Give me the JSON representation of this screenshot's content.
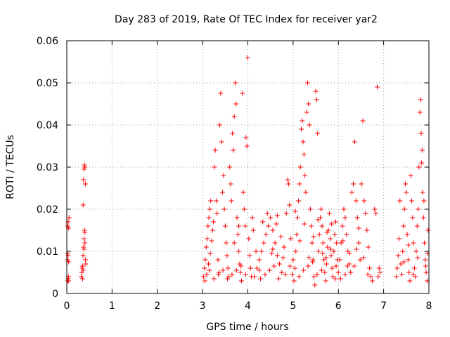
{
  "chart_data": {
    "type": "scatter",
    "title": "Day 283 of 2019, Rate Of TEC Index for receiver yar2",
    "xlabel": "GPS time / hours",
    "ylabel": "ROTI / TECUs",
    "xlim": [
      0,
      8
    ],
    "ylim": [
      0,
      0.06
    ],
    "xticks": [
      "0",
      "1",
      "2",
      "3",
      "4",
      "5",
      "6",
      "7",
      "8"
    ],
    "yticks": [
      "0",
      "0.01",
      "0.02",
      "0.03",
      "0.04",
      "0.05",
      "0.06"
    ],
    "grid": true,
    "marker": "plus",
    "color": "#ff0000",
    "series": [
      {
        "name": "yar2",
        "points": [
          [
            0.02,
            0.003
          ],
          [
            0.03,
            0.0035
          ],
          [
            0.04,
            0.003
          ],
          [
            0.02,
            0.008
          ],
          [
            0.03,
            0.009
          ],
          [
            0.04,
            0.0075
          ],
          [
            0.02,
            0.016
          ],
          [
            0.03,
            0.017
          ],
          [
            0.04,
            0.0155
          ],
          [
            0.05,
            0.018
          ],
          [
            0.02,
            0.0095
          ],
          [
            0.04,
            0.004
          ],
          [
            0.32,
            0.004
          ],
          [
            0.33,
            0.005
          ],
          [
            0.34,
            0.006
          ],
          [
            0.35,
            0.0035
          ],
          [
            0.36,
            0.009
          ],
          [
            0.37,
            0.011
          ],
          [
            0.38,
            0.013
          ],
          [
            0.39,
            0.015
          ],
          [
            0.4,
            0.012
          ],
          [
            0.41,
            0.008
          ],
          [
            0.42,
            0.007
          ],
          [
            0.36,
            0.021
          ],
          [
            0.37,
            0.027
          ],
          [
            0.38,
            0.0295
          ],
          [
            0.39,
            0.0305
          ],
          [
            0.4,
            0.03
          ],
          [
            0.41,
            0.026
          ],
          [
            0.35,
            0.0065
          ],
          [
            0.36,
            0.0055
          ],
          [
            0.38,
            0.0105
          ],
          [
            0.4,
            0.0145
          ],
          [
            3.02,
            0.004
          ],
          [
            3.04,
            0.006
          ],
          [
            3.06,
            0.008
          ],
          [
            3.08,
            0.011
          ],
          [
            3.1,
            0.013
          ],
          [
            3.12,
            0.016
          ],
          [
            3.14,
            0.018
          ],
          [
            3.16,
            0.02
          ],
          [
            3.18,
            0.022
          ],
          [
            3.05,
            0.003
          ],
          [
            3.09,
            0.0045
          ],
          [
            3.13,
            0.007
          ],
          [
            3.17,
            0.0095
          ],
          [
            3.2,
            0.0125
          ],
          [
            3.22,
            0.015
          ],
          [
            3.24,
            0.017
          ],
          [
            3.26,
            0.03
          ],
          [
            3.28,
            0.034
          ],
          [
            3.3,
            0.022
          ],
          [
            3.32,
            0.019
          ],
          [
            3.34,
            0.008
          ],
          [
            3.36,
            0.005
          ],
          [
            3.38,
            0.04
          ],
          [
            3.4,
            0.0475
          ],
          [
            3.42,
            0.036
          ],
          [
            3.44,
            0.024
          ],
          [
            3.46,
            0.028
          ],
          [
            3.48,
            0.02
          ],
          [
            3.5,
            0.016
          ],
          [
            3.52,
            0.012
          ],
          [
            3.54,
            0.009
          ],
          [
            3.56,
            0.006
          ],
          [
            3.58,
            0.004
          ],
          [
            3.6,
            0.03
          ],
          [
            3.62,
            0.026
          ],
          [
            3.64,
            0.022
          ],
          [
            3.66,
            0.038
          ],
          [
            3.68,
            0.034
          ],
          [
            3.7,
            0.042
          ],
          [
            3.72,
            0.05
          ],
          [
            3.74,
            0.045
          ],
          [
            3.76,
            0.018
          ],
          [
            3.78,
            0.014
          ],
          [
            3.8,
            0.01
          ],
          [
            3.82,
            0.007
          ],
          [
            3.84,
            0.005
          ],
          [
            3.86,
            0.003
          ],
          [
            3.88,
            0.0475
          ],
          [
            3.9,
            0.024
          ],
          [
            3.92,
            0.02
          ],
          [
            3.94,
            0.016
          ],
          [
            3.96,
            0.037
          ],
          [
            3.98,
            0.035
          ],
          [
            4.0,
            0.056
          ],
          [
            4.02,
            0.013
          ],
          [
            4.04,
            0.009
          ],
          [
            4.06,
            0.006
          ],
          [
            4.08,
            0.004
          ],
          [
            4.1,
            0.018
          ],
          [
            4.12,
            0.015
          ],
          [
            3.25,
            0.0035
          ],
          [
            3.35,
            0.0045
          ],
          [
            3.45,
            0.0055
          ],
          [
            3.55,
            0.0035
          ],
          [
            3.65,
            0.0045
          ],
          [
            3.75,
            0.0055
          ],
          [
            3.85,
            0.0065
          ],
          [
            3.95,
            0.0045
          ],
          [
            3.15,
            0.0055
          ],
          [
            3.7,
            0.012
          ],
          [
            3.8,
            0.016
          ],
          [
            4.15,
            0.004
          ],
          [
            4.2,
            0.006
          ],
          [
            4.25,
            0.008
          ],
          [
            4.3,
            0.01
          ],
          [
            4.35,
            0.012
          ],
          [
            4.4,
            0.014
          ],
          [
            4.45,
            0.016
          ],
          [
            4.5,
            0.018
          ],
          [
            4.55,
            0.015
          ],
          [
            4.6,
            0.012
          ],
          [
            4.65,
            0.009
          ],
          [
            4.7,
            0.007
          ],
          [
            4.75,
            0.005
          ],
          [
            4.8,
            0.011
          ],
          [
            4.85,
            0.019
          ],
          [
            4.88,
            0.027
          ],
          [
            4.9,
            0.026
          ],
          [
            4.92,
            0.021
          ],
          [
            4.95,
            0.013
          ],
          [
            5.0,
            0.008
          ],
          [
            4.18,
            0.01
          ],
          [
            4.28,
            0.0035
          ],
          [
            4.38,
            0.0045
          ],
          [
            4.48,
            0.0055
          ],
          [
            4.58,
            0.0065
          ],
          [
            4.68,
            0.0035
          ],
          [
            4.78,
            0.0085
          ],
          [
            4.98,
            0.0045
          ],
          [
            4.33,
            0.017
          ],
          [
            4.43,
            0.019
          ],
          [
            4.53,
            0.0095
          ],
          [
            4.63,
            0.0165
          ],
          [
            4.73,
            0.0135
          ],
          [
            4.83,
            0.0045
          ],
          [
            4.93,
            0.0065
          ],
          [
            4.25,
            0.0055
          ],
          [
            4.55,
            0.0105
          ],
          [
            4.65,
            0.0185
          ],
          [
            5.02,
            0.003
          ],
          [
            5.04,
            0.006
          ],
          [
            5.06,
            0.01
          ],
          [
            5.08,
            0.014
          ],
          [
            5.1,
            0.018
          ],
          [
            5.12,
            0.022
          ],
          [
            5.14,
            0.026
          ],
          [
            5.16,
            0.03
          ],
          [
            5.18,
            0.039
          ],
          [
            5.2,
            0.041
          ],
          [
            5.22,
            0.036
          ],
          [
            5.24,
            0.033
          ],
          [
            5.26,
            0.028
          ],
          [
            5.28,
            0.024
          ],
          [
            5.3,
            0.043
          ],
          [
            5.32,
            0.05
          ],
          [
            5.34,
            0.045
          ],
          [
            5.36,
            0.04
          ],
          [
            5.38,
            0.02
          ],
          [
            5.4,
            0.016
          ],
          [
            5.42,
            0.012
          ],
          [
            5.44,
            0.008
          ],
          [
            5.46,
            0.004
          ],
          [
            5.48,
            0.002
          ],
          [
            5.5,
            0.048
          ],
          [
            5.52,
            0.046
          ],
          [
            5.54,
            0.038
          ],
          [
            5.56,
            0.01
          ],
          [
            5.58,
            0.014
          ],
          [
            5.6,
            0.018
          ],
          [
            5.62,
            0.02
          ],
          [
            5.64,
            0.016
          ],
          [
            5.66,
            0.012
          ],
          [
            5.68,
            0.008
          ],
          [
            5.7,
            0.005
          ],
          [
            5.72,
            0.003
          ],
          [
            5.74,
            0.007
          ],
          [
            5.76,
            0.011
          ],
          [
            5.78,
            0.015
          ],
          [
            5.8,
            0.019
          ],
          [
            5.82,
            0.013
          ],
          [
            5.84,
            0.009
          ],
          [
            5.86,
            0.006
          ],
          [
            5.88,
            0.004
          ],
          [
            5.9,
            0.01
          ],
          [
            5.92,
            0.014
          ],
          [
            5.94,
            0.017
          ],
          [
            5.96,
            0.012
          ],
          [
            5.98,
            0.008
          ],
          [
            5.13,
            0.004
          ],
          [
            5.23,
            0.0055
          ],
          [
            5.33,
            0.0065
          ],
          [
            5.43,
            0.0075
          ],
          [
            5.53,
            0.0045
          ],
          [
            5.63,
            0.0055
          ],
          [
            5.73,
            0.0085
          ],
          [
            5.83,
            0.0105
          ],
          [
            5.93,
            0.0035
          ],
          [
            5.05,
            0.0195
          ],
          [
            5.15,
            0.0125
          ],
          [
            5.25,
            0.0165
          ],
          [
            5.35,
            0.0085
          ],
          [
            5.45,
            0.0135
          ],
          [
            5.55,
            0.0175
          ],
          [
            5.65,
            0.0095
          ],
          [
            5.75,
            0.0145
          ],
          [
            5.85,
            0.0165
          ],
          [
            5.95,
            0.0065
          ],
          [
            6.0,
            0.005
          ],
          [
            6.03,
            0.008
          ],
          [
            6.06,
            0.012
          ],
          [
            6.09,
            0.016
          ],
          [
            6.12,
            0.02
          ],
          [
            6.15,
            0.018
          ],
          [
            6.18,
            0.014
          ],
          [
            6.21,
            0.01
          ],
          [
            6.24,
            0.007
          ],
          [
            6.27,
            0.005
          ],
          [
            6.3,
            0.024
          ],
          [
            6.33,
            0.026
          ],
          [
            6.36,
            0.036
          ],
          [
            6.39,
            0.022
          ],
          [
            6.42,
            0.018
          ],
          [
            6.45,
            0.012
          ],
          [
            6.48,
            0.008
          ],
          [
            6.51,
            0.026
          ],
          [
            6.54,
            0.041
          ],
          [
            6.57,
            0.022
          ],
          [
            6.6,
            0.019
          ],
          [
            6.63,
            0.015
          ],
          [
            6.66,
            0.011
          ],
          [
            6.69,
            0.006
          ],
          [
            6.72,
            0.004
          ],
          [
            6.75,
            0.003
          ],
          [
            6.8,
            0.02
          ],
          [
            6.83,
            0.019
          ],
          [
            6.86,
            0.049
          ],
          [
            6.88,
            0.004
          ],
          [
            6.9,
            0.006
          ],
          [
            6.92,
            0.005
          ],
          [
            6.05,
            0.0035
          ],
          [
            6.15,
            0.0045
          ],
          [
            6.25,
            0.0095
          ],
          [
            6.35,
            0.0065
          ],
          [
            6.45,
            0.0155
          ],
          [
            6.55,
            0.0085
          ],
          [
            6.65,
            0.0045
          ],
          [
            6.1,
            0.0125
          ],
          [
            6.2,
            0.0065
          ],
          [
            6.4,
            0.0105
          ],
          [
            7.28,
            0.004
          ],
          [
            7.3,
            0.006
          ],
          [
            7.32,
            0.009
          ],
          [
            7.34,
            0.013
          ],
          [
            7.36,
            0.022
          ],
          [
            7.38,
            0.007
          ],
          [
            7.42,
            0.01
          ],
          [
            7.44,
            0.016
          ],
          [
            7.46,
            0.02
          ],
          [
            7.48,
            0.026
          ],
          [
            7.5,
            0.024
          ],
          [
            7.52,
            0.014
          ],
          [
            7.54,
            0.008
          ],
          [
            7.56,
            0.005
          ],
          [
            7.58,
            0.003
          ],
          [
            7.6,
            0.028
          ],
          [
            7.62,
            0.022
          ],
          [
            7.64,
            0.018
          ],
          [
            7.66,
            0.012
          ],
          [
            7.68,
            0.006
          ],
          [
            7.7,
            0.004
          ],
          [
            7.72,
            0.01
          ],
          [
            7.74,
            0.016
          ],
          [
            7.76,
            0.02
          ],
          [
            7.78,
            0.03
          ],
          [
            7.8,
            0.043
          ],
          [
            7.82,
            0.046
          ],
          [
            7.84,
            0.031
          ],
          [
            7.86,
            0.024
          ],
          [
            7.88,
            0.018
          ],
          [
            7.9,
            0.012
          ],
          [
            7.92,
            0.008
          ],
          [
            7.94,
            0.005
          ],
          [
            7.96,
            0.003
          ],
          [
            7.98,
            0.015
          ],
          [
            7.83,
            0.038
          ],
          [
            7.85,
            0.034
          ],
          [
            7.89,
            0.022
          ],
          [
            7.93,
            0.0065
          ],
          [
            7.97,
            0.0095
          ],
          [
            7.4,
            0.0045
          ],
          [
            7.45,
            0.0075
          ],
          [
            7.55,
            0.0115
          ],
          [
            7.65,
            0.0045
          ],
          [
            7.75,
            0.0085
          ]
        ]
      }
    ]
  }
}
